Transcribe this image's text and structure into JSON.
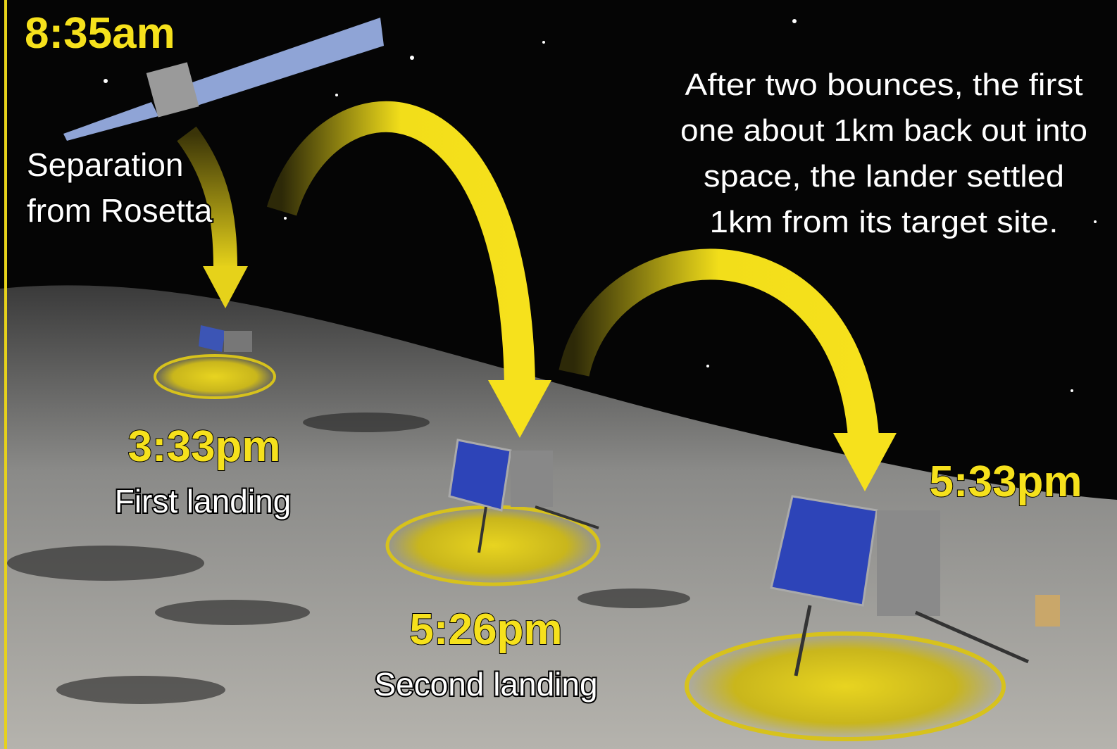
{
  "separation": {
    "time": "8:35am",
    "label": [
      "Separation",
      "from Rosetta"
    ]
  },
  "landings": [
    {
      "time": "3:33pm",
      "label": "First landing"
    },
    {
      "time": "5:26pm",
      "label": "Second landing"
    },
    {
      "time": "5:33pm"
    }
  ],
  "note": [
    "After two bounces, the first",
    "one about 1km back out into",
    "space, the lander settled",
    "1km from its target site."
  ]
}
